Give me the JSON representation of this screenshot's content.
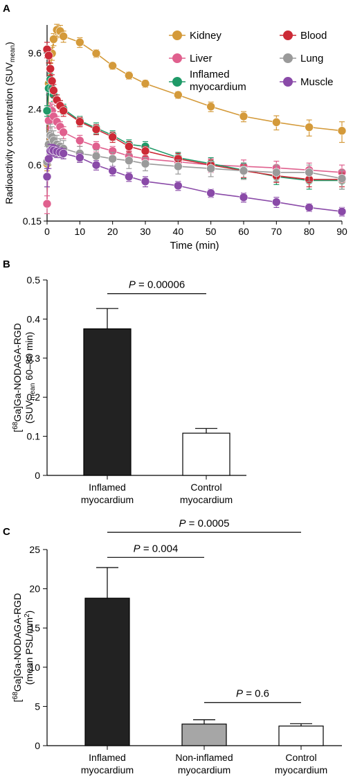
{
  "chart_data": [
    {
      "panel": "A",
      "type": "line",
      "xlabel": "Time (min)",
      "ylabel": "Radioactivity concentration (SUV",
      "ylabel_sub": "mean",
      "ylabel_end": ")",
      "y_scale": "log",
      "xlim": [
        0,
        90
      ],
      "ylim": [
        0.15,
        19.2
      ],
      "x_ticks": [
        0,
        10,
        20,
        30,
        40,
        50,
        60,
        70,
        80,
        90
      ],
      "y_ticks": [
        0.15,
        0.6,
        2.4,
        9.6
      ],
      "y_tick_labels": [
        "0.15",
        "0.6",
        "2.4",
        "9.6"
      ],
      "legend_placement": "top-right",
      "series": [
        {
          "name": "Kidney",
          "color": "#d49a3a",
          "x": [
            0,
            0.5,
            1,
            1.5,
            2,
            3,
            4,
            5,
            10,
            15,
            20,
            25,
            30,
            40,
            50,
            60,
            70,
            80,
            90
          ],
          "y": [
            0.62,
            4.5,
            6.5,
            9.5,
            13.5,
            17.0,
            16.5,
            14.5,
            12.5,
            9.5,
            7.0,
            5.5,
            4.5,
            3.4,
            2.55,
            2.0,
            1.73,
            1.53,
            1.4
          ],
          "err": [
            0.1,
            0.6,
            0.9,
            1.5,
            2.0,
            2.5,
            2.5,
            2.0,
            1.5,
            0.9,
            0.6,
            0.5,
            0.4,
            0.3,
            0.3,
            0.25,
            0.3,
            0.3,
            0.35
          ]
        },
        {
          "name": "Liver",
          "color": "#e0608e",
          "x": [
            0,
            0.5,
            1,
            1.5,
            2,
            3,
            4,
            5,
            10,
            15,
            20,
            25,
            30,
            40,
            50,
            60,
            70,
            80,
            90
          ],
          "y": [
            0.23,
            1.8,
            2.4,
            2.3,
            2.0,
            1.75,
            1.55,
            1.35,
            1.1,
            0.95,
            0.85,
            0.75,
            0.7,
            0.65,
            0.6,
            0.58,
            0.56,
            0.53,
            0.5
          ],
          "err": [
            0.05,
            0.3,
            0.4,
            0.4,
            0.3,
            0.25,
            0.2,
            0.2,
            0.15,
            0.12,
            0.1,
            0.1,
            0.1,
            0.1,
            0.1,
            0.1,
            0.1,
            0.1,
            0.1
          ]
        },
        {
          "name": "Inflamed myocardium",
          "color": "#1f9a68",
          "x": [
            0,
            0.5,
            1,
            1.5,
            2,
            3,
            4,
            5,
            10,
            15,
            20,
            25,
            30,
            40,
            50,
            60,
            70,
            80,
            90
          ],
          "y": [
            2.3,
            4.0,
            5.0,
            4.0,
            3.4,
            3.0,
            2.6,
            2.4,
            1.8,
            1.5,
            1.25,
            1.0,
            0.95,
            0.72,
            0.62,
            0.53,
            0.45,
            0.41,
            0.41
          ],
          "err": [
            0.3,
            0.6,
            0.8,
            0.6,
            0.5,
            0.4,
            0.35,
            0.3,
            0.2,
            0.2,
            0.15,
            0.12,
            0.12,
            0.1,
            0.1,
            0.1,
            0.08,
            0.08,
            0.08
          ]
        },
        {
          "name": "Blood",
          "color": "#cc2a36",
          "x": [
            0,
            0.5,
            1,
            1.5,
            2,
            3,
            4,
            5,
            10,
            15,
            20,
            25,
            30,
            40,
            50,
            60,
            70,
            80,
            90
          ],
          "y": [
            10.5,
            9.0,
            6.5,
            4.8,
            3.8,
            3.0,
            2.6,
            2.3,
            1.75,
            1.45,
            1.2,
            0.95,
            0.85,
            0.7,
            0.6,
            0.52,
            0.46,
            0.42,
            0.42
          ],
          "err": [
            2.0,
            1.5,
            1.0,
            0.8,
            0.6,
            0.4,
            0.35,
            0.3,
            0.2,
            0.18,
            0.15,
            0.12,
            0.1,
            0.1,
            0.08,
            0.08,
            0.07,
            0.07,
            0.07
          ]
        },
        {
          "name": "Lung",
          "color": "#9a9a9a",
          "x": [
            0,
            0.5,
            1,
            1.5,
            2,
            3,
            4,
            5,
            10,
            15,
            20,
            25,
            30,
            40,
            50,
            60,
            70,
            80,
            90
          ],
          "y": [
            0.65,
            1.0,
            1.25,
            1.2,
            1.1,
            1.0,
            0.95,
            0.9,
            0.8,
            0.75,
            0.7,
            0.67,
            0.62,
            0.58,
            0.55,
            0.52,
            0.5,
            0.5,
            0.43
          ],
          "err": [
            0.3,
            0.4,
            0.4,
            0.35,
            0.3,
            0.25,
            0.2,
            0.2,
            0.15,
            0.12,
            0.12,
            0.12,
            0.1,
            0.1,
            0.1,
            0.1,
            0.1,
            0.1,
            0.1
          ]
        },
        {
          "name": "Muscle",
          "color": "#8a4aa8",
          "x": [
            0,
            0.5,
            1,
            1.5,
            2,
            3,
            4,
            5,
            10,
            15,
            20,
            25,
            30,
            40,
            50,
            60,
            70,
            80,
            90
          ],
          "y": [
            0.45,
            0.7,
            0.85,
            0.88,
            0.86,
            0.84,
            0.82,
            0.8,
            0.72,
            0.6,
            0.52,
            0.45,
            0.4,
            0.36,
            0.3,
            0.27,
            0.24,
            0.21,
            0.19
          ],
          "err": [
            0.1,
            0.15,
            0.15,
            0.12,
            0.12,
            0.12,
            0.1,
            0.1,
            0.08,
            0.07,
            0.06,
            0.05,
            0.05,
            0.04,
            0.03,
            0.03,
            0.03,
            0.02,
            0.02
          ]
        }
      ]
    },
    {
      "panel": "B",
      "type": "bar",
      "categories": [
        [
          "Inflamed",
          "myocardium"
        ],
        [
          "Control",
          "myocardium"
        ]
      ],
      "values": [
        0.375,
        0.108
      ],
      "errors": [
        0.052,
        0.012
      ],
      "colors": [
        "#222222",
        "#ffffff"
      ],
      "ylabel_lines": [
        {
          "pre_sup": "68",
          "text": "Ga]Ga-NODAGA-RGD",
          "bracket": "["
        },
        {
          "text": "(SUV",
          "sub": "mean",
          "post": " 60–80 min)"
        }
      ],
      "ylim": [
        0,
        0.5
      ],
      "y_ticks": [
        0,
        0.1,
        0.2,
        0.3,
        0.4,
        0.5
      ],
      "y_tick_labels": [
        "0",
        "0.1",
        "0.2",
        "0.3",
        "0.4",
        "0.5"
      ],
      "annotations": [
        {
          "from": 0,
          "to": 1,
          "label_p": "P",
          "label_rest": " = 0.00006",
          "y": 0.465
        }
      ]
    },
    {
      "panel": "C",
      "type": "bar",
      "categories": [
        [
          "Inflamed",
          "myocardium"
        ],
        [
          "Non-inflamed",
          "myocardium"
        ],
        [
          "Control",
          "myocardium"
        ]
      ],
      "values": [
        18.8,
        2.75,
        2.5
      ],
      "errors": [
        3.9,
        0.55,
        0.3
      ],
      "colors": [
        "#222222",
        "#a6a6a6",
        "#ffffff"
      ],
      "ylabel_lines": [
        {
          "pre_sup": "68",
          "text": "Ga]Ga-NODAGA-RGD",
          "bracket": "["
        },
        {
          "text": "(mean PSL/mm",
          "sup": "2",
          "post": ")"
        }
      ],
      "ylim": [
        0,
        25
      ],
      "y_ticks": [
        0,
        5,
        10,
        15,
        20,
        25
      ],
      "y_tick_labels": [
        "0",
        "5",
        "10",
        "15",
        "20",
        "25"
      ],
      "annotations": [
        {
          "from": 0,
          "to": 2,
          "label_p": "P",
          "label_rest": " = 0.0005",
          "y": 27.2
        },
        {
          "from": 0,
          "to": 1,
          "label_p": "P",
          "label_rest": " = 0.004",
          "y": 24.0
        },
        {
          "from": 1,
          "to": 2,
          "label_p": "P",
          "label_rest": " = 0.6",
          "y": 5.5
        }
      ]
    }
  ],
  "panel_labels": [
    "A",
    "B",
    "C"
  ]
}
